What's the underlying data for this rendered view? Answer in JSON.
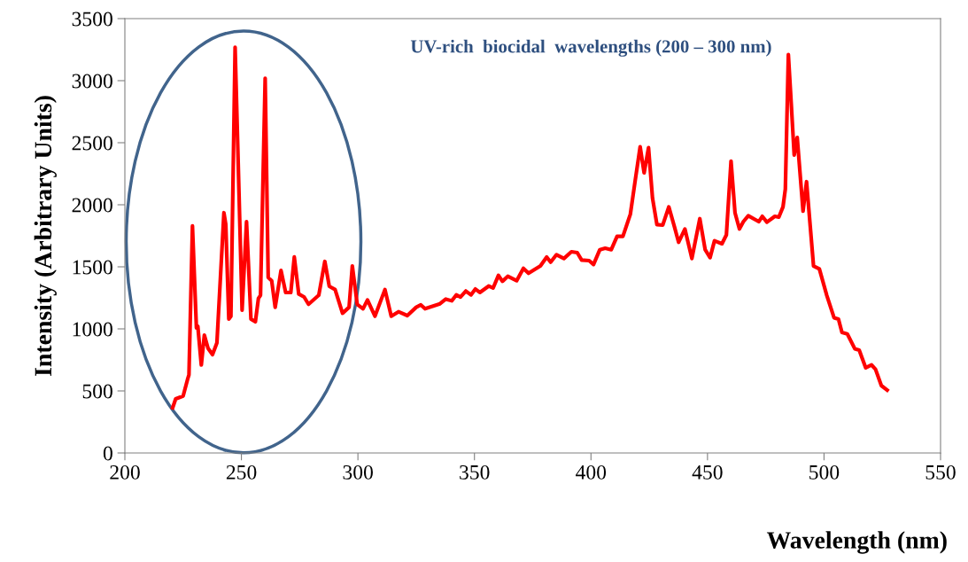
{
  "chart_data": {
    "type": "line",
    "xlabel": "Wavelength (nm)",
    "ylabel": "Intensity (Arbitrary Units)",
    "annotations": [
      "UV-rich  biocidal  wavelengths (200 – 300 nm)"
    ],
    "xlim": [
      200,
      550
    ],
    "xticks": [
      200,
      250,
      300,
      350,
      400,
      450,
      500,
      550
    ],
    "ylim": [
      0,
      3500
    ],
    "yticks": [
      0,
      500,
      1000,
      1500,
      2000,
      2500,
      3000,
      3500
    ],
    "grid": false,
    "legend": false,
    "marker": "none",
    "line_style": "solid",
    "series": [
      {
        "color": "#ff0000",
        "x": [
          220.5,
          221.8,
          225,
          226.9,
          227.5,
          229.0,
          230.7,
          231.3,
          232.8,
          234.1,
          235.7,
          237.6,
          239.5,
          242.5,
          243.3,
          244.6,
          245.5,
          247.3,
          249,
          250.3,
          252.2,
          254.1,
          256,
          257.3,
          258.2,
          260.2,
          261.5,
          263,
          264.5,
          267,
          269,
          271.2,
          272.7,
          274.6,
          276.9,
          278.8,
          283.2,
          285.8,
          287.7,
          290.2,
          293.4,
          296.2,
          297.6,
          299.7,
          302.2,
          304.1,
          307.3,
          311.6,
          314.3,
          317.4,
          321.2,
          325,
          327,
          328.8,
          335.2,
          337.7,
          340.3,
          342.2,
          344,
          346.3,
          348.5,
          350.4,
          352.3,
          356.1,
          358,
          360.3,
          362,
          364.3,
          368.1,
          371,
          373.2,
          378.3,
          381,
          382.7,
          385.2,
          388.4,
          391.6,
          394.1,
          396,
          399.2,
          401.1,
          403.8,
          406.1,
          408.7,
          411.2,
          413.7,
          416.9,
          419,
          421.1,
          422.8,
          424.7,
          426.4,
          428.3,
          430.8,
          433.4,
          435.9,
          437.6,
          440.3,
          443.3,
          446.7,
          449,
          451.1,
          453,
          456.2,
          458.1,
          460.1,
          461.8,
          463.7,
          465.4,
          467.5,
          472,
          473.5,
          475.5,
          478.9,
          480.6,
          482.4,
          483.4,
          484.7,
          486,
          487.2,
          488.5,
          491,
          492.5,
          495.5,
          498,
          501.2,
          504.3,
          506.2,
          507.7,
          510,
          513.2,
          515.1,
          517.9,
          520.4,
          522.1,
          524.6,
          527.1
        ],
        "values": [
          364,
          436,
          459,
          593,
          629,
          1829,
          1007,
          1021,
          709,
          950,
          843,
          793,
          888,
          1936,
          1843,
          1079,
          1102,
          3269,
          2079,
          1150,
          1864,
          1079,
          1057,
          1245,
          1271,
          3019,
          1414,
          1388,
          1174,
          1471,
          1293,
          1293,
          1579,
          1281,
          1257,
          1198,
          1271,
          1543,
          1343,
          1317,
          1126,
          1174,
          1507,
          1198,
          1162,
          1233,
          1102,
          1317,
          1102,
          1138,
          1107,
          1174,
          1193,
          1162,
          1202,
          1240,
          1226,
          1274,
          1257,
          1305,
          1274,
          1321,
          1293,
          1345,
          1329,
          1431,
          1383,
          1424,
          1388,
          1488,
          1448,
          1507,
          1579,
          1538,
          1598,
          1567,
          1621,
          1614,
          1555,
          1550,
          1519,
          1638,
          1650,
          1638,
          1745,
          1745,
          1924,
          2198,
          2467,
          2257,
          2460,
          2055,
          1840,
          1836,
          1983,
          1817,
          1698,
          1805,
          1567,
          1888,
          1638,
          1574,
          1710,
          1686,
          1757,
          2352,
          1936,
          1805,
          1864,
          1912,
          1864,
          1907,
          1860,
          1907,
          1900,
          1983,
          2126,
          3210,
          2793,
          2400,
          2543,
          1948,
          2186,
          1507,
          1483,
          1269,
          1090,
          1079,
          971,
          959,
          840,
          829,
          686,
          709,
          674,
          543,
          507
        ]
      }
    ]
  }
}
